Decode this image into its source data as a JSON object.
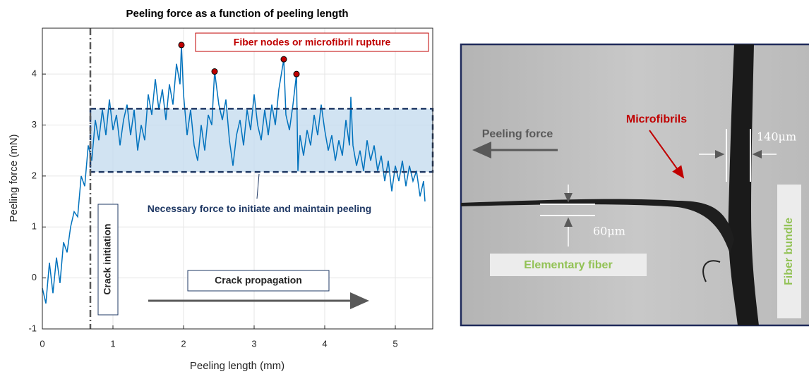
{
  "chart_data": {
    "type": "line",
    "title": "Peeling force as a function of peeling length",
    "xlabel": "Peeling length (mm)",
    "ylabel": "Peeling force (mN)",
    "xlim": [
      0,
      5.53
    ],
    "ylim": [
      -1,
      4.9
    ],
    "xticks": [
      0,
      1,
      2,
      3,
      4,
      5
    ],
    "yticks": [
      -1,
      0,
      1,
      2,
      3,
      4
    ],
    "grid": true,
    "color": "#0072bd",
    "x": [
      0,
      0.05,
      0.1,
      0.15,
      0.2,
      0.25,
      0.3,
      0.35,
      0.4,
      0.45,
      0.5,
      0.55,
      0.6,
      0.65,
      0.7,
      0.75,
      0.8,
      0.85,
      0.9,
      0.95,
      1.0,
      1.05,
      1.1,
      1.15,
      1.2,
      1.25,
      1.3,
      1.35,
      1.4,
      1.45,
      1.5,
      1.55,
      1.6,
      1.65,
      1.7,
      1.75,
      1.8,
      1.85,
      1.9,
      1.95,
      1.97,
      2.0,
      2.05,
      2.1,
      2.15,
      2.2,
      2.25,
      2.3,
      2.35,
      2.4,
      2.44,
      2.5,
      2.55,
      2.6,
      2.65,
      2.7,
      2.75,
      2.8,
      2.85,
      2.9,
      2.95,
      3.0,
      3.05,
      3.1,
      3.15,
      3.2,
      3.25,
      3.3,
      3.35,
      3.42,
      3.45,
      3.5,
      3.55,
      3.6,
      3.62,
      3.65,
      3.7,
      3.75,
      3.8,
      3.85,
      3.9,
      3.95,
      4.0,
      4.05,
      4.1,
      4.15,
      4.2,
      4.25,
      4.3,
      4.35,
      4.37,
      4.4,
      4.45,
      4.5,
      4.55,
      4.6,
      4.65,
      4.7,
      4.75,
      4.8,
      4.85,
      4.9,
      4.95,
      5.0,
      5.05,
      5.1,
      5.15,
      5.2,
      5.25,
      5.3,
      5.35,
      5.4,
      5.42
    ],
    "values": [
      -0.2,
      -0.5,
      0.3,
      -0.3,
      0.4,
      -0.1,
      0.7,
      0.5,
      1.0,
      1.3,
      1.2,
      2.0,
      1.8,
      2.6,
      2.3,
      3.1,
      2.7,
      3.3,
      2.8,
      3.5,
      2.9,
      3.2,
      2.6,
      3.1,
      3.4,
      2.8,
      3.3,
      2.5,
      3.0,
      2.7,
      3.6,
      3.2,
      3.9,
      3.3,
      3.7,
      3.1,
      3.8,
      3.4,
      4.2,
      3.8,
      4.57,
      3.6,
      2.8,
      3.3,
      2.6,
      2.3,
      3.0,
      2.5,
      3.2,
      3.0,
      4.05,
      3.4,
      3.1,
      3.5,
      2.7,
      2.2,
      2.8,
      3.1,
      2.6,
      3.3,
      2.9,
      3.6,
      3.0,
      2.7,
      3.3,
      2.8,
      3.4,
      3.0,
      3.7,
      4.29,
      3.2,
      2.9,
      3.4,
      4.0,
      2.1,
      2.8,
      2.4,
      2.9,
      2.6,
      3.2,
      2.8,
      3.4,
      2.9,
      2.5,
      2.8,
      2.3,
      2.7,
      2.4,
      3.1,
      2.6,
      3.55,
      2.6,
      2.2,
      2.5,
      2.1,
      2.7,
      2.3,
      2.6,
      2.1,
      2.4,
      1.9,
      2.3,
      1.7,
      2.2,
      1.9,
      2.3,
      1.8,
      2.2,
      1.9,
      2.1,
      1.6,
      1.9,
      1.5
    ],
    "markers": {
      "color": "#c00000",
      "x": [
        1.97,
        2.44,
        3.42,
        3.6
      ],
      "values": [
        4.57,
        4.05,
        4.29,
        4.0
      ]
    },
    "band": {
      "color": "#c5dcef",
      "xlim": [
        0.68,
        5.53
      ],
      "ylim": [
        2.08,
        3.32
      ]
    },
    "initiation_x": 0.68,
    "annotations": {
      "rupture": "Fiber nodes or microfibril rupture",
      "necessary": "Necessary force to initiate and maintain peeling",
      "initiation": "Crack initiation",
      "propagation": "Crack propagation"
    }
  },
  "image": {
    "peeling_force": "Peeling force",
    "microfibrils": "Microfibrils",
    "bundle_width": "140μm",
    "fiber_width": "60μm",
    "elementary_fiber": "Elementary fiber",
    "fiber_bundle": "Fiber bundle"
  }
}
